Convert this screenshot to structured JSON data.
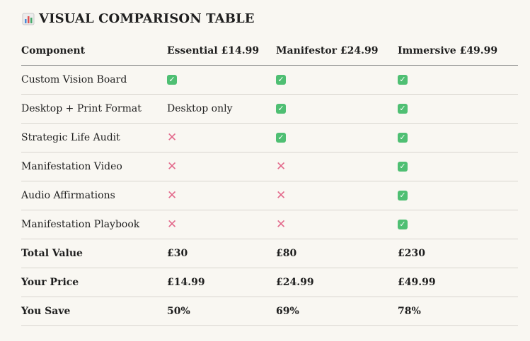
{
  "title": {
    "icon": "bar-chart-icon",
    "text": "VISUAL COMPARISON TABLE"
  },
  "table": {
    "headers": [
      "Component",
      "Essential £14.99",
      "Manifestor £24.99",
      "Immersive £49.99"
    ],
    "rows": [
      {
        "label": "Custom Vision Board",
        "bold": false,
        "cells": [
          {
            "type": "check",
            "icon": "check-icon"
          },
          {
            "type": "check",
            "icon": "check-icon"
          },
          {
            "type": "check",
            "icon": "check-icon"
          }
        ]
      },
      {
        "label": "Desktop + Print Format",
        "bold": false,
        "cells": [
          {
            "type": "text",
            "text": "Desktop only"
          },
          {
            "type": "check",
            "icon": "check-icon"
          },
          {
            "type": "check",
            "icon": "check-icon"
          }
        ]
      },
      {
        "label": "Strategic Life Audit",
        "bold": false,
        "cells": [
          {
            "type": "cross",
            "icon": "cross-icon"
          },
          {
            "type": "check",
            "icon": "check-icon"
          },
          {
            "type": "check",
            "icon": "check-icon"
          }
        ]
      },
      {
        "label": "Manifestation Video",
        "bold": false,
        "cells": [
          {
            "type": "cross",
            "icon": "cross-icon"
          },
          {
            "type": "cross",
            "icon": "cross-icon"
          },
          {
            "type": "check",
            "icon": "check-icon"
          }
        ]
      },
      {
        "label": "Audio Affirmations",
        "bold": false,
        "cells": [
          {
            "type": "cross",
            "icon": "cross-icon"
          },
          {
            "type": "cross",
            "icon": "cross-icon"
          },
          {
            "type": "check",
            "icon": "check-icon"
          }
        ]
      },
      {
        "label": "Manifestation Playbook",
        "bold": false,
        "cells": [
          {
            "type": "cross",
            "icon": "cross-icon"
          },
          {
            "type": "cross",
            "icon": "cross-icon"
          },
          {
            "type": "check",
            "icon": "check-icon"
          }
        ]
      },
      {
        "label": "Total Value",
        "bold": true,
        "cells": [
          {
            "type": "text",
            "text": "£30"
          },
          {
            "type": "text",
            "text": "£80"
          },
          {
            "type": "text",
            "text": "£230"
          }
        ]
      },
      {
        "label": "Your Price",
        "bold": true,
        "cells": [
          {
            "type": "text",
            "text": "£14.99"
          },
          {
            "type": "text",
            "text": "£24.99"
          },
          {
            "type": "text",
            "text": "£49.99"
          }
        ]
      },
      {
        "label": "You Save",
        "bold": true,
        "cells": [
          {
            "type": "text",
            "text": "50%"
          },
          {
            "type": "text",
            "text": "69%"
          },
          {
            "type": "text",
            "text": "78%"
          }
        ]
      }
    ]
  },
  "colors": {
    "background": "#f9f7f2",
    "text": "#1f1f1f",
    "check": "#4fbf73",
    "cross": "#e36a8c",
    "divider": "#d8d5cf",
    "header_divider": "#8f8f8f"
  }
}
